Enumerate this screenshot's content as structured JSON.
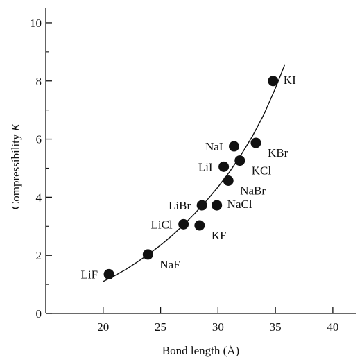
{
  "chart_data": {
    "type": "scatter",
    "xlabel": "Bond length (Å)",
    "ylabel": "Compressibility",
    "ylabel_symbol": "K",
    "xlim": [
      15,
      42
    ],
    "ylim": [
      0,
      10.5
    ],
    "x_ticks": [
      20,
      25,
      30,
      35,
      40
    ],
    "y_ticks": [
      0,
      2,
      4,
      6,
      8,
      10
    ],
    "grid": false,
    "points": [
      {
        "label": "LiF",
        "x": 20.5,
        "y": 1.35,
        "label_pos": "left"
      },
      {
        "label": "NaF",
        "x": 23.9,
        "y": 2.03,
        "label_pos": "below-right"
      },
      {
        "label": "LiCl",
        "x": 27.0,
        "y": 3.07,
        "label_pos": "left"
      },
      {
        "label": "KF",
        "x": 28.4,
        "y": 3.03,
        "label_pos": "below-right"
      },
      {
        "label": "LiBr",
        "x": 28.6,
        "y": 3.72,
        "label_pos": "left"
      },
      {
        "label": "NaCl",
        "x": 29.9,
        "y": 3.72,
        "label_pos": "right"
      },
      {
        "label": "NaBr",
        "x": 30.9,
        "y": 4.57,
        "label_pos": "below-right"
      },
      {
        "label": "LiI",
        "x": 30.5,
        "y": 5.05,
        "label_pos": "left"
      },
      {
        "label": "KCl",
        "x": 31.9,
        "y": 5.26,
        "label_pos": "below-right"
      },
      {
        "label": "NaI",
        "x": 31.4,
        "y": 5.75,
        "label_pos": "left"
      },
      {
        "label": "KBr",
        "x": 33.3,
        "y": 5.87,
        "label_pos": "below-right"
      },
      {
        "label": "KI",
        "x": 34.8,
        "y": 8.0,
        "label_pos": "right"
      }
    ],
    "fit_curve": {
      "x": [
        20.0,
        21.0,
        22.0,
        23.0,
        24.0,
        25.0,
        26.0,
        27.0,
        28.0,
        29.0,
        30.0,
        31.0,
        32.0,
        33.0,
        34.0,
        35.0,
        35.8
      ],
      "y": [
        1.1,
        1.3,
        1.52,
        1.78,
        2.05,
        2.35,
        2.68,
        3.05,
        3.45,
        3.88,
        4.35,
        4.87,
        5.45,
        6.1,
        6.85,
        7.75,
        8.55
      ]
    }
  }
}
